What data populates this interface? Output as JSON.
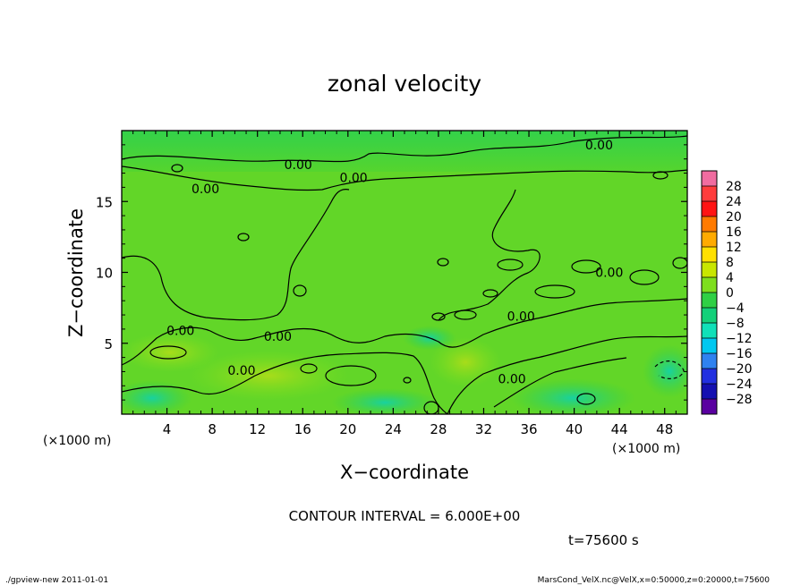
{
  "chart_data": {
    "type": "heatmap",
    "title": "zonal velocity",
    "xlabel": "X−coordinate",
    "ylabel": "Z−coordinate",
    "x_unit": "(×1000 m)",
    "y_unit": "(×1000 m)",
    "x_ticks": [
      "4",
      "8",
      "12",
      "16",
      "20",
      "24",
      "28",
      "32",
      "36",
      "40",
      "44",
      "48"
    ],
    "y_ticks": [
      "5",
      "10",
      "15"
    ],
    "xlim": [
      0,
      50
    ],
    "ylim": [
      0,
      20
    ],
    "colorbar_labels": [
      "28",
      "24",
      "20",
      "16",
      "12",
      "8",
      "4",
      "0",
      "−4",
      "−8",
      "−12",
      "−16",
      "−20",
      "−24",
      "−28"
    ],
    "colorbar_colors": [
      "#f06ca0",
      "#ff3c3c",
      "#ff1414",
      "#ff7a00",
      "#ffaa00",
      "#ffe000",
      "#c8e600",
      "#7ede1e",
      "#2fd045",
      "#13d079",
      "#10e0b8",
      "#00c8f0",
      "#2f82f0",
      "#2230e0",
      "#1410b0",
      "#5a00a0"
    ],
    "contour_labels": [
      {
        "text": "0.00",
        "x": 42.2,
        "z": 19.0
      },
      {
        "text": "0.00",
        "x": 15.6,
        "z": 17.6
      },
      {
        "text": "0.00",
        "x": 20.5,
        "z": 16.7
      },
      {
        "text": "0.00",
        "x": 7.4,
        "z": 15.9
      },
      {
        "text": "0.00",
        "x": 43.1,
        "z": 10.0
      },
      {
        "text": "0.00",
        "x": 35.3,
        "z": 6.9
      },
      {
        "text": "0.00",
        "x": 5.2,
        "z": 5.9
      },
      {
        "text": "0.00",
        "x": 13.8,
        "z": 5.5
      },
      {
        "text": "0.00",
        "x": 10.6,
        "z": 3.1
      },
      {
        "text": "0.00",
        "x": 34.5,
        "z": 2.5
      }
    ],
    "contour_interval": "CONTOUR INTERVAL = 6.000E+00",
    "time": "t=75600  s"
  },
  "footer": {
    "left": "./gpview-new   2011-01-01",
    "right": "MarsCond_VelX.nc@VelX,x=0:50000,z=0:20000,t=75600"
  }
}
